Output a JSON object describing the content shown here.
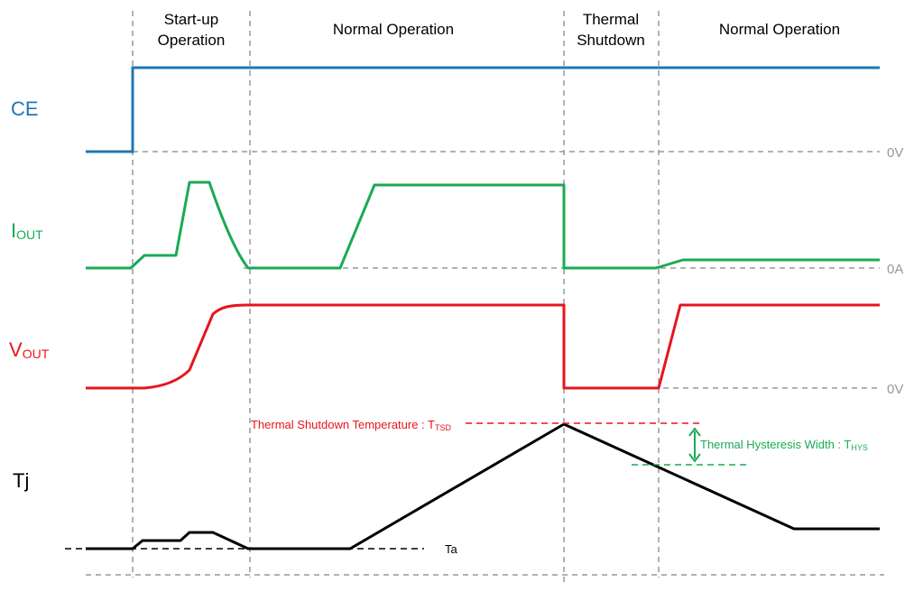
{
  "phases": {
    "startup_line1": "Start-up",
    "startup_line2": "Operation",
    "normal1": "Normal Operation",
    "thermal_line1": "Thermal",
    "thermal_line2": "Shutdown",
    "normal2": "Normal Operation"
  },
  "signals": {
    "ce": "CE",
    "iout_main": "I",
    "iout_sub": "OUT",
    "vout_main": "V",
    "vout_sub": "OUT",
    "tj": "Tj"
  },
  "levels": {
    "ce_zero": "0V",
    "iout_zero": "0A",
    "vout_zero": "0V",
    "ta": "Ta"
  },
  "annotations": {
    "tsd_main": "Thermal Shutdown Temperature : T",
    "tsd_sub": "TSD",
    "hys_main": "Thermal Hysteresis Width : T",
    "hys_sub": "HYS"
  },
  "colors": {
    "ce": "#1f77b4",
    "iout": "#1aaa55",
    "vout": "#e8141c",
    "tj": "#000000",
    "guide": "#999999"
  }
}
